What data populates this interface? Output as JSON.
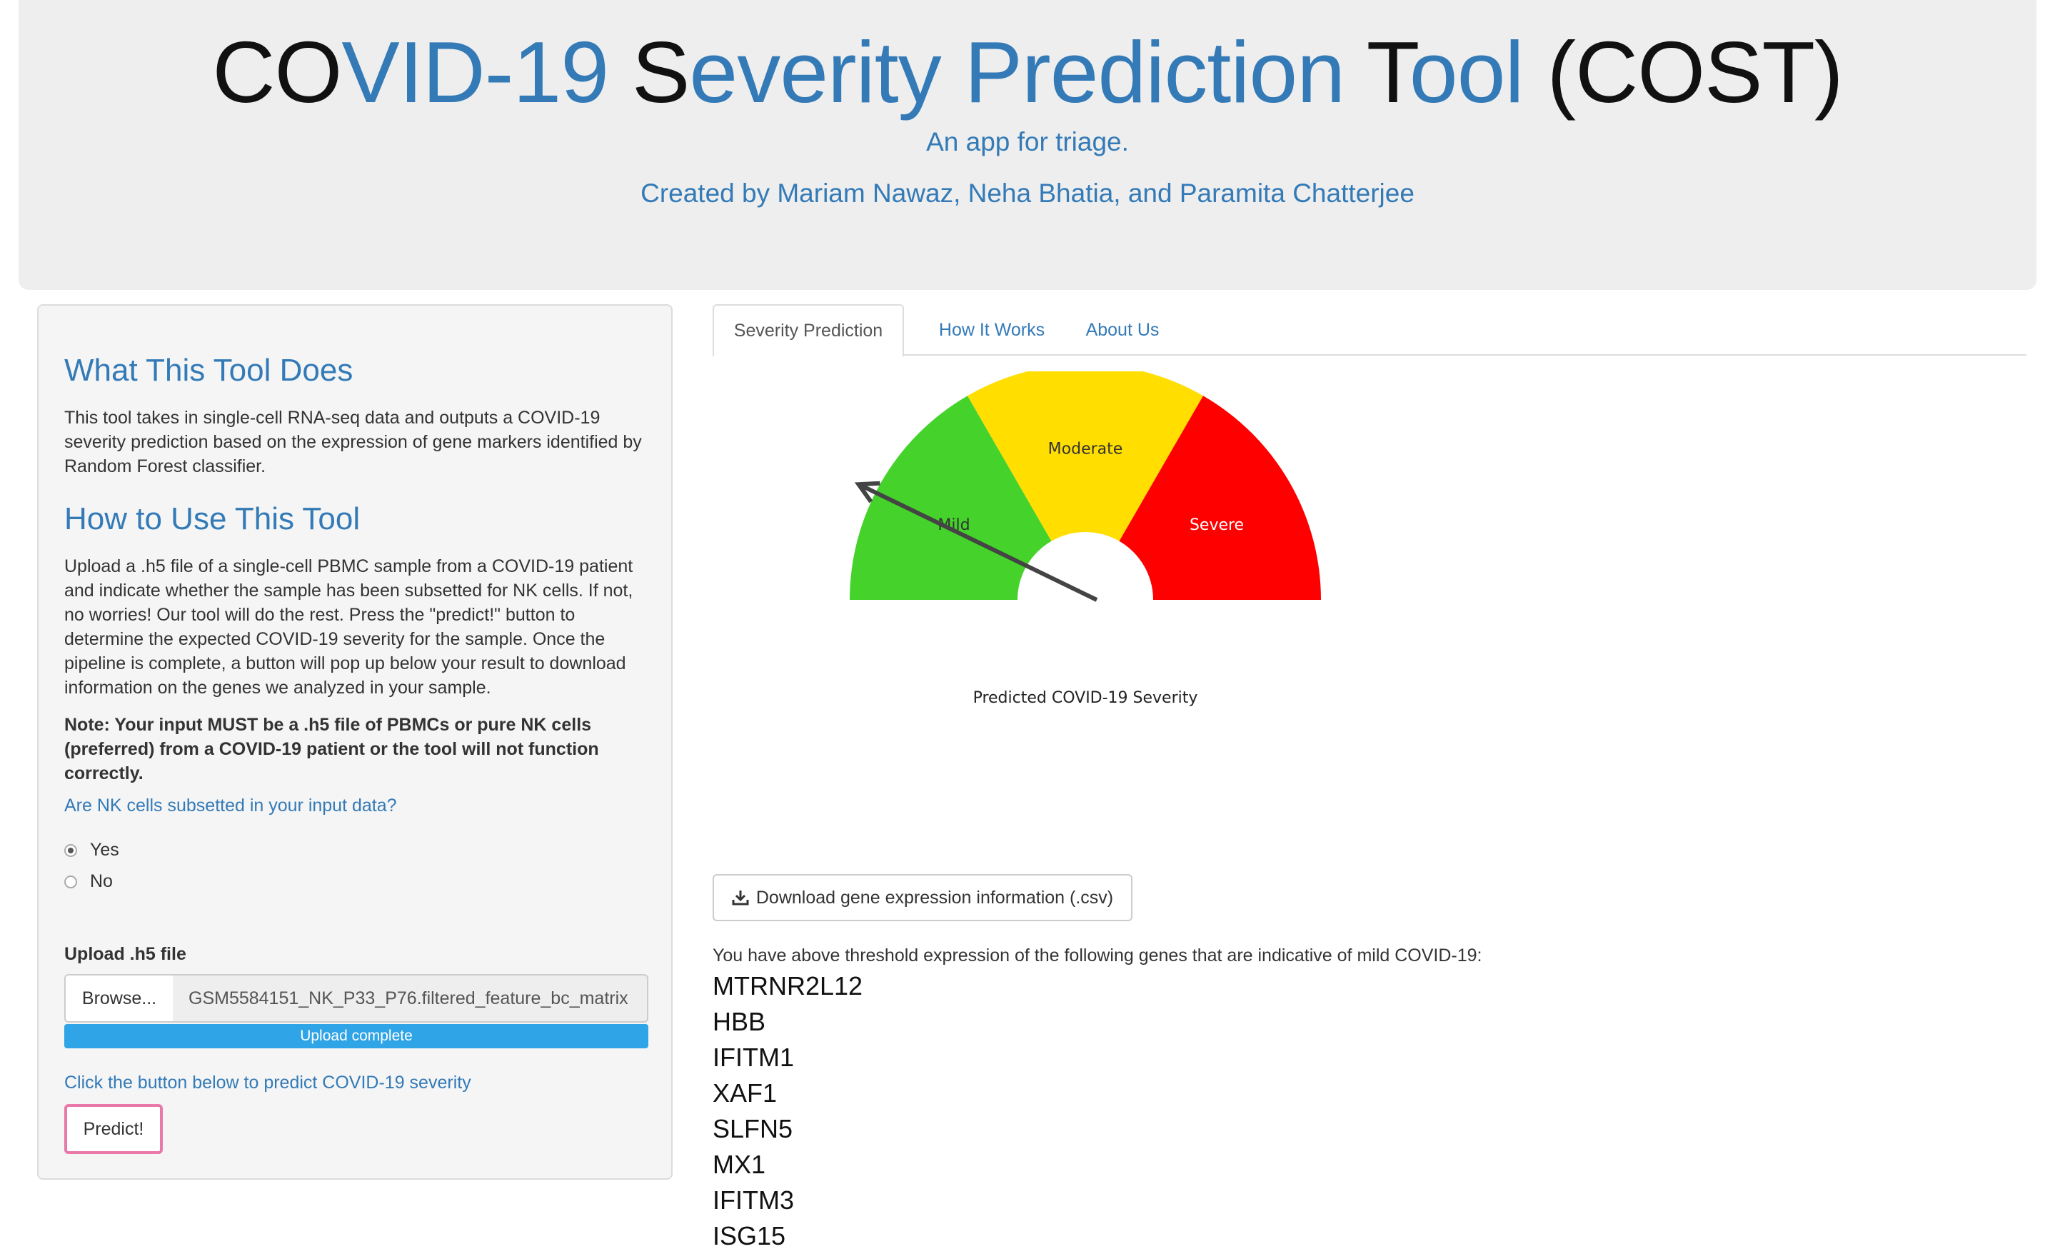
{
  "header": {
    "title_parts": [
      {
        "text": "CO",
        "color": "black"
      },
      {
        "text": "VID-19 ",
        "color": "blue"
      },
      {
        "text": "S",
        "color": "black"
      },
      {
        "text": "everity Prediction ",
        "color": "blue"
      },
      {
        "text": "T",
        "color": "black"
      },
      {
        "text": "ool ",
        "color": "blue"
      },
      {
        "text": "(COST)",
        "color": "black"
      }
    ],
    "subtitle": "An app for triage.",
    "credits": "Created by Mariam Nawaz, Neha Bhatia, and Paramita Chatterjee"
  },
  "sidebar": {
    "what_heading": "What This Tool Does",
    "what_text": "This tool takes in single-cell RNA-seq data and outputs a COVID-19 severity prediction based on the expression of gene markers identified by Random Forest classifier.",
    "how_heading": "How to Use This Tool",
    "how_text": "Upload a .h5 file of a single-cell PBMC sample from a COVID-19 patient and indicate whether the sample has been subsetted for NK cells. If not, no worries! Our tool will do the rest. Press the \"predict!\" button to determine the expected COVID-19 severity for the sample. Once the pipeline is complete, a button will pop up below your result to download information on the genes we analyzed in your sample.",
    "note": "Note: Your input MUST be a .h5 file of PBMCs or pure NK cells (preferred) from a COVID-19 patient or the tool will not function correctly.",
    "radio_question": "Are NK cells subsetted in your input data?",
    "radio_options": [
      {
        "label": "Yes",
        "selected": true
      },
      {
        "label": "No",
        "selected": false
      }
    ],
    "upload_label": "Upload .h5 file",
    "browse_label": "Browse...",
    "file_name": "GSM5584151_NK_P33_P76.filtered_feature_bc_matrix",
    "progress_label": "Upload complete",
    "progress_fraction": 1.0,
    "predict_prompt": "Click the button below to predict COVID-19 severity",
    "predict_label": "Predict!"
  },
  "tabs": [
    {
      "label": "Severity Prediction",
      "active": true
    },
    {
      "label": "How It Works",
      "active": false
    },
    {
      "label": "About Us",
      "active": false
    }
  ],
  "gauge": {
    "segments": [
      {
        "label": "Mild",
        "color": "#45d32b"
      },
      {
        "label": "Moderate",
        "color": "#ffde00"
      },
      {
        "label": "Severe",
        "color": "#ff0000"
      }
    ],
    "caption": "Predicted COVID-19 Severity",
    "needle_level": 0.15
  },
  "download_label": "Download gene expression information (.csv)",
  "result_text": "You have above threshold expression of the following genes that are indicative of mild COVID-19:",
  "genes": [
    "MTRNR2L12",
    "HBB",
    "IFITM1",
    "XAF1",
    "SLFN5",
    "MX1",
    "IFITM3",
    "ISG15"
  ]
}
